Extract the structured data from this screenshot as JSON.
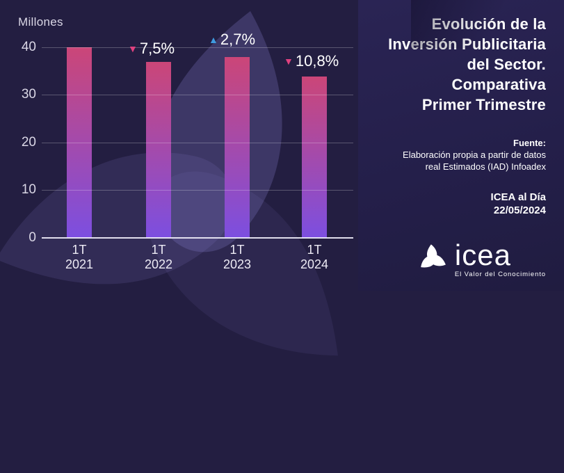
{
  "colors": {
    "background_left": "#231e41",
    "background_right": "#2a2454",
    "bar_gradient_top": "#cb4678",
    "bar_gradient_bottom": "#7c4fe0",
    "decrease": "#e0417f",
    "increase": "#3f9be0",
    "text": "#ffffff",
    "axis_text": "#dad7e6"
  },
  "chart_data": {
    "type": "bar",
    "title": "",
    "ylabel": "Millones",
    "xlabel": "",
    "categories": [
      "1T 2021",
      "1T 2022",
      "1T 2023",
      "1T 2024"
    ],
    "values": [
      40.0,
      37.0,
      38.0,
      33.9
    ],
    "ylim": [
      0,
      40
    ],
    "yticks": [
      0,
      10,
      20,
      30,
      40
    ],
    "grid": "horizontal",
    "legend": "none",
    "annotations": [
      {
        "category": "1T 2022",
        "symbol": "▼",
        "label": "7,5%",
        "direction": "decrease"
      },
      {
        "category": "1T 2023",
        "symbol": "▲",
        "label": "2,7%",
        "direction": "increase"
      },
      {
        "category": "1T 2024",
        "symbol": "▼",
        "label": "10,8%",
        "direction": "decrease"
      }
    ]
  },
  "chart": {
    "x_labels": [
      {
        "quarter": "1T",
        "year": "2021"
      },
      {
        "quarter": "1T",
        "year": "2022"
      },
      {
        "quarter": "1T",
        "year": "2023"
      },
      {
        "quarter": "1T",
        "year": "2024"
      }
    ]
  },
  "panel": {
    "title_lines": [
      "Evolución de la",
      "Inversión Publicitaria",
      "del Sector.",
      "Comparativa",
      "Primer Trimestre"
    ],
    "source_label": "Fuente:",
    "source_line1": "Elaboración propia a partir de datos",
    "source_line2": "real Estimados (IAD) Infoadex",
    "issue_name": "ICEA al Día",
    "issue_date": "22/05/2024",
    "logo_text": "icea",
    "logo_tagline": "El Valor del Conocimiento"
  }
}
